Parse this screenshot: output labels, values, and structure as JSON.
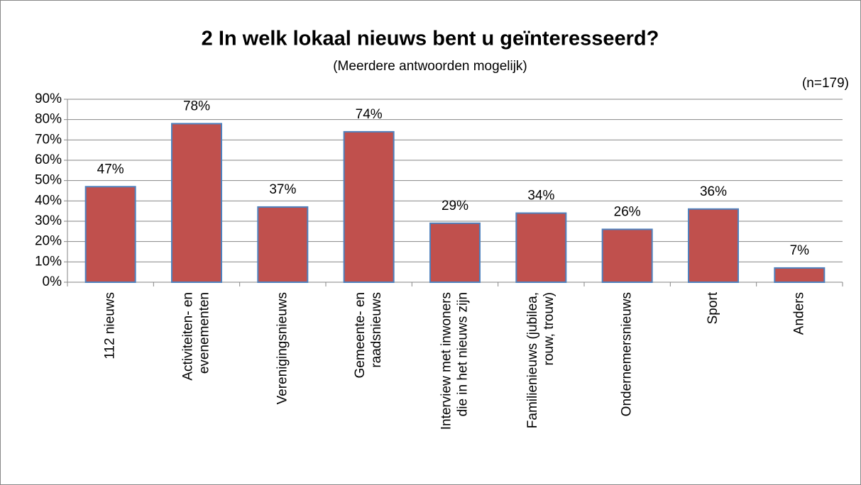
{
  "chart_data": {
    "type": "bar",
    "title": "2 In welk lokaal nieuws bent u geïnteresseerd?",
    "subtitle": "(Meerdere antwoorden mogelijk)",
    "annotation": "(n=179)",
    "categories": [
      [
        "112 nieuws"
      ],
      [
        "Activiteiten- en",
        "evenementen"
      ],
      [
        "Verenigingsnieuws"
      ],
      [
        "Gemeente- en",
        "raadsnieuws"
      ],
      [
        "Interview met inwoners",
        "die in het nieuws zijn"
      ],
      [
        "Familienieuws (jubilea,",
        "rouw, trouw)"
      ],
      [
        "Ondernemersnieuws"
      ],
      [
        "Sport"
      ],
      [
        "Anders"
      ]
    ],
    "values": [
      47,
      78,
      37,
      74,
      29,
      34,
      26,
      36,
      7
    ],
    "value_labels": [
      "47%",
      "78%",
      "37%",
      "74%",
      "29%",
      "34%",
      "26%",
      "36%",
      "7%"
    ],
    "color": "#c0504d",
    "edge_color": "#4f81bd",
    "ylim": [
      0,
      90
    ],
    "yticks": [
      {
        "value": 0,
        "label": "0%"
      },
      {
        "value": 10,
        "label": "10%"
      },
      {
        "value": 20,
        "label": "20%"
      },
      {
        "value": 30,
        "label": "30%"
      },
      {
        "value": 40,
        "label": "40%"
      },
      {
        "value": 50,
        "label": "50%"
      },
      {
        "value": 60,
        "label": "60%"
      },
      {
        "value": 70,
        "label": "70%"
      },
      {
        "value": 80,
        "label": "80%"
      },
      {
        "value": 90,
        "label": "90%"
      }
    ],
    "grid": true
  }
}
